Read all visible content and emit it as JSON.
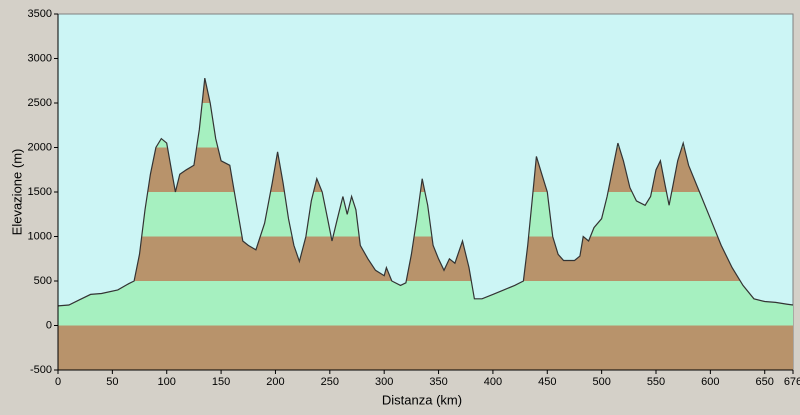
{
  "chart_data": {
    "type": "area",
    "xlabel": "Distanza  (km)",
    "ylabel": "Elevazione  (m)",
    "x": [
      0,
      10,
      20,
      30,
      40,
      55,
      65,
      70,
      75,
      80,
      85,
      90,
      95,
      100,
      105,
      108,
      112,
      118,
      125,
      130,
      135,
      140,
      145,
      150,
      158,
      165,
      170,
      175,
      182,
      190,
      197,
      202,
      207,
      212,
      217,
      222,
      228,
      233,
      238,
      243,
      248,
      252,
      257,
      262,
      266,
      270,
      274,
      278,
      285,
      292,
      300,
      302,
      307,
      315,
      320,
      325,
      330,
      335,
      340,
      345,
      350,
      355,
      360,
      365,
      372,
      378,
      383,
      390,
      400,
      410,
      420,
      428,
      432,
      436,
      440,
      445,
      450,
      455,
      460,
      465,
      475,
      480,
      483,
      488,
      493,
      500,
      505,
      510,
      515,
      520,
      526,
      532,
      540,
      545,
      550,
      554,
      558,
      562,
      566,
      570,
      575,
      580,
      590,
      600,
      610,
      620,
      630,
      640,
      650,
      660,
      670,
      676
    ],
    "values": [
      220,
      230,
      290,
      350,
      360,
      400,
      470,
      500,
      800,
      1300,
      1700,
      2000,
      2100,
      2050,
      1700,
      1500,
      1700,
      1750,
      1800,
      2200,
      2780,
      2500,
      2100,
      1850,
      1800,
      1300,
      950,
      900,
      850,
      1150,
      1600,
      1950,
      1600,
      1200,
      900,
      720,
      1000,
      1400,
      1650,
      1500,
      1200,
      950,
      1200,
      1450,
      1250,
      1450,
      1300,
      900,
      750,
      620,
      560,
      650,
      500,
      450,
      480,
      800,
      1200,
      1650,
      1350,
      900,
      750,
      620,
      750,
      700,
      950,
      650,
      300,
      300,
      350,
      400,
      450,
      500,
      900,
      1400,
      1900,
      1700,
      1500,
      1000,
      800,
      730,
      730,
      780,
      1000,
      950,
      1100,
      1200,
      1450,
      1750,
      2050,
      1850,
      1550,
      1400,
      1350,
      1450,
      1750,
      1850,
      1600,
      1350,
      1600,
      1850,
      2050,
      1800,
      1500,
      1200,
      900,
      650,
      450,
      300,
      270,
      260,
      240,
      230
    ],
    "xlim": [
      0,
      676
    ],
    "ylim": [
      -500,
      3500
    ],
    "xticks": [
      0,
      50,
      100,
      150,
      200,
      250,
      300,
      350,
      400,
      450,
      500,
      550,
      600,
      650,
      676
    ],
    "yticks": [
      -500,
      0,
      500,
      1000,
      1500,
      2000,
      2500,
      3000,
      3500
    ],
    "band_colors": [
      "#b8936b",
      "#a6f0c0"
    ],
    "background": "#ccf5f5",
    "line_color": "#333333"
  }
}
